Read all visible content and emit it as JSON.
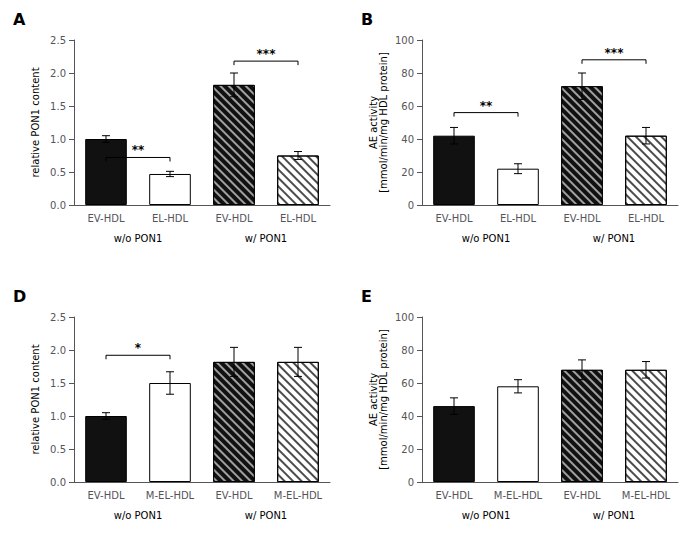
{
  "chart_data": [
    {
      "type": "bar",
      "title": "A",
      "categories": [
        "EV-HDL",
        "EL-HDL",
        "EV-HDL",
        "EL-HDL"
      ],
      "values": [
        1.0,
        0.47,
        1.82,
        0.75
      ],
      "errors": [
        0.05,
        0.04,
        0.18,
        0.06
      ],
      "colors": [
        "#111111",
        "#ffffff",
        "#111111",
        "#ffffff"
      ],
      "ylabel": "relative PON1 content",
      "ylim": [
        0,
        2.5
      ],
      "yticks": [
        {
          "value": 0,
          "label": "0.0"
        },
        0.5,
        {
          "value": 1,
          "label": "1.0"
        },
        1.5,
        {
          "value": 2,
          "label": "2.0"
        },
        2.5
      ],
      "group_labels": [
        "w/o PON1",
        "w/ PON1"
      ],
      "annotations": [
        {
          "text": "**",
          "x": [
            0,
            1
          ],
          "y": 0.72
        },
        {
          "text": "***",
          "x": [
            2,
            3
          ],
          "y": 2.18
        }
      ],
      "grid": false
    },
    {
      "type": "bar",
      "title": "B",
      "categories": [
        "EV-HDL",
        "EL-HDL",
        "EV-HDL",
        "EL-HDL"
      ],
      "values": [
        42,
        22,
        72,
        42
      ],
      "errors": [
        5,
        3,
        8,
        5
      ],
      "colors": [
        "#111111",
        "#ffffff",
        "#111111",
        "#ffffff"
      ],
      "ylabel": "AE activity\n[mmol/min/mg HDL protein]",
      "ylim": [
        0,
        100
      ],
      "yticks": [
        0,
        20,
        40,
        60,
        80,
        100
      ],
      "group_labels": [
        "w/o PON1",
        "w/ PON1"
      ],
      "annotations": [
        {
          "text": "**",
          "x": [
            0,
            1
          ],
          "y": 56
        },
        {
          "text": "***",
          "x": [
            2,
            3
          ],
          "y": 88
        }
      ],
      "grid": false
    },
    {
      "type": "bar",
      "title": "D",
      "categories": [
        "EV-HDL",
        "M-EL-HDL",
        "EV-HDL",
        "M-EL-HDL"
      ],
      "values": [
        1.0,
        1.5,
        1.82,
        1.82
      ],
      "errors": [
        0.05,
        0.17,
        0.22,
        0.22
      ],
      "colors": [
        "#111111",
        "#ffffff",
        "#111111",
        "#ffffff"
      ],
      "ylabel": "relative PON1 content",
      "ylim": [
        0,
        2.5
      ],
      "yticks": [
        {
          "value": 0,
          "label": "0.0"
        },
        0.5,
        {
          "value": 1,
          "label": "1.0"
        },
        1.5,
        {
          "value": 2,
          "label": "2.0"
        },
        2.5
      ],
      "group_labels": [
        "w/o PON1",
        "w/ PON1"
      ],
      "annotations": [
        {
          "text": "*",
          "x": [
            0,
            1
          ],
          "y": 1.92
        }
      ],
      "grid": false
    },
    {
      "type": "bar",
      "title": "E",
      "categories": [
        "EV-HDL",
        "M-EL-HDL",
        "EV-HDL",
        "M-EL-HDL"
      ],
      "values": [
        46,
        58,
        68,
        68
      ],
      "errors": [
        5,
        4,
        6,
        5
      ],
      "colors": [
        "#111111",
        "#ffffff",
        "#111111",
        "#ffffff"
      ],
      "ylabel": "AE activity\n[mmol/min/mg HDL protein]",
      "ylim": [
        0,
        100
      ],
      "yticks": [
        0,
        20,
        40,
        60,
        80,
        100
      ],
      "group_labels": [
        "w/o PON1",
        "w/ PON1"
      ],
      "grid": false
    }
  ]
}
